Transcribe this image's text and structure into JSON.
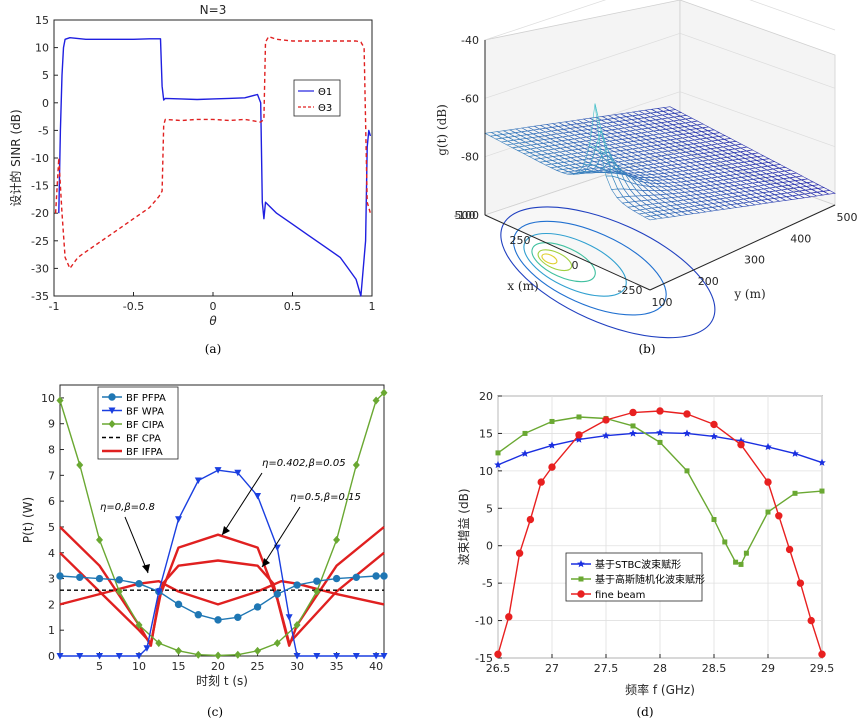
{
  "chart_data": [
    {
      "panel": "(a)",
      "type": "line",
      "title": "N=3",
      "xlabel": "θ",
      "ylabel": "设计的 SINR (dB)",
      "xlim": [
        -1,
        1
      ],
      "ylim": [
        -35,
        15
      ],
      "xticks": [
        "-1",
        "-0.5",
        "0",
        "0.5",
        "1"
      ],
      "yticks": [
        "-35",
        "-30",
        "-25",
        "-20",
        "-15",
        "-10",
        "-5",
        "0",
        "5",
        "10",
        "15"
      ],
      "legend": {
        "position": "top-right",
        "entries": [
          "Θ1",
          "Θ3"
        ]
      },
      "series": [
        {
          "name": "Θ1",
          "color": "#1f1fe0",
          "style": "solid",
          "x": [
            -0.97,
            -0.96,
            -0.95,
            -0.94,
            -0.93,
            -0.9,
            -0.8,
            -0.7,
            -0.6,
            -0.5,
            -0.4,
            -0.33,
            -0.32,
            -0.31,
            -0.3,
            -0.2,
            -0.1,
            0,
            0.1,
            0.2,
            0.28,
            0.3,
            0.31,
            0.32,
            0.33,
            0.4,
            0.5,
            0.6,
            0.7,
            0.8,
            0.85,
            0.9,
            0.93,
            0.96,
            0.97,
            0.98,
            0.99
          ],
          "y": [
            -20,
            -5,
            5,
            10,
            11.5,
            11.8,
            11.5,
            11.5,
            11.5,
            11.5,
            11.6,
            11.6,
            3,
            0.5,
            0.8,
            0.7,
            0.6,
            0.7,
            0.8,
            0.9,
            1.5,
            0,
            -18,
            -21,
            -18,
            -20,
            -22,
            -24,
            -26,
            -28,
            -30,
            -32,
            -35,
            -25,
            -8,
            -5,
            -6
          ]
        },
        {
          "name": "Θ3",
          "color": "#e02020",
          "style": "dashed",
          "x": [
            -0.99,
            -0.97,
            -0.95,
            -0.93,
            -0.9,
            -0.85,
            -0.8,
            -0.7,
            -0.6,
            -0.5,
            -0.4,
            -0.34,
            -0.32,
            -0.31,
            -0.3,
            -0.2,
            -0.1,
            0,
            0.1,
            0.2,
            0.3,
            0.32,
            0.33,
            0.35,
            0.4,
            0.5,
            0.6,
            0.7,
            0.8,
            0.9,
            0.93,
            0.95,
            0.97,
            0.99
          ],
          "y": [
            -20,
            -10,
            -20,
            -28,
            -30,
            -28,
            -27,
            -25,
            -23,
            -21,
            -19,
            -17,
            -16,
            -4,
            -3,
            -3.2,
            -3,
            -3,
            -3.2,
            -3,
            -3.5,
            -3,
            11,
            12,
            11.5,
            11.2,
            11.2,
            11.2,
            11.2,
            11.2,
            11,
            10,
            -18,
            -20
          ]
        }
      ]
    },
    {
      "panel": "(b)",
      "type": "surface3d",
      "xlabel": "x (m)",
      "ylabel": "y (m)",
      "zlabel": "g(t) (dB)",
      "zticks": [
        "-40",
        "-60",
        "-80",
        "-100"
      ],
      "xticks": [
        "500",
        "250",
        "0",
        "-250"
      ],
      "yticks": [
        "100",
        "200",
        "300",
        "400",
        "500"
      ],
      "zlim": [
        -100,
        -40
      ],
      "xlim": [
        -250,
        500
      ],
      "ylim": [
        100,
        500
      ],
      "peak": {
        "x": 0,
        "y": 100,
        "z": -45
      }
    },
    {
      "panel": "(c)",
      "type": "line",
      "xlabel": "时刻 t (s)",
      "ylabel": "P(t) (W)",
      "xlim": [
        0,
        41
      ],
      "ylim": [
        0,
        10.5
      ],
      "xticks": [
        "5",
        "10",
        "15",
        "20",
        "25",
        "30",
        "35",
        "40"
      ],
      "yticks": [
        "0",
        "1",
        "2",
        "3",
        "4",
        "5",
        "6",
        "7",
        "8",
        "9",
        "10"
      ],
      "legend": {
        "position": "top-left"
      },
      "annotations": [
        "η=0,β=0.8",
        "η=0.402,β=0.05",
        "η=0.5,β=0.15"
      ],
      "series": [
        {
          "name": "BF PFPA",
          "color": "#1f77b4",
          "marker": "circle",
          "x": [
            0,
            2.5,
            5,
            7.5,
            10,
            12.5,
            15,
            17.5,
            20,
            22.5,
            25,
            27.5,
            30,
            32.5,
            35,
            37.5,
            40,
            41
          ],
          "y": [
            3.1,
            3.05,
            3.0,
            2.95,
            2.8,
            2.5,
            2.0,
            1.6,
            1.4,
            1.5,
            1.9,
            2.4,
            2.75,
            2.9,
            3.0,
            3.05,
            3.1,
            3.1
          ]
        },
        {
          "name": "BF WPA",
          "color": "#1a3fe0",
          "marker": "triangle",
          "x": [
            0,
            2.5,
            5,
            7.5,
            10,
            11,
            12.5,
            15,
            17.5,
            20,
            22.5,
            25,
            27.5,
            29,
            30,
            32.5,
            35,
            37.5,
            40,
            41
          ],
          "y": [
            0,
            0,
            0,
            0,
            0,
            0.3,
            2.5,
            5.3,
            6.8,
            7.2,
            7.1,
            6.2,
            4.2,
            1.5,
            0,
            0,
            0,
            0,
            0,
            0
          ]
        },
        {
          "name": "BF CIPA",
          "color": "#6aa832",
          "marker": "diamond",
          "x": [
            0,
            2.5,
            5,
            7.5,
            10,
            12.5,
            15,
            17.5,
            20,
            22.5,
            25,
            27.5,
            30,
            32.5,
            35,
            37.5,
            40,
            41
          ],
          "y": [
            9.9,
            7.4,
            4.5,
            2.5,
            1.2,
            0.5,
            0.2,
            0.05,
            0.02,
            0.05,
            0.2,
            0.5,
            1.2,
            2.5,
            4.5,
            7.4,
            9.9,
            10.2
          ]
        },
        {
          "name": "BF CPA",
          "color": "#000000",
          "style": "dashed",
          "x": [
            0,
            41
          ],
          "y": [
            2.55,
            2.55
          ]
        },
        {
          "name": "BF IFPA",
          "color": "#e02020",
          "style": "solid-thick",
          "x": [
            0,
            5,
            10,
            11.5,
            12.5,
            15,
            20,
            25,
            27.5,
            29,
            30,
            35,
            41
          ],
          "y": [
            5.0,
            3.5,
            1.2,
            0.4,
            2.2,
            4.2,
            4.7,
            4.2,
            2.2,
            0.4,
            1.2,
            3.5,
            5.0
          ]
        },
        {
          "name": "",
          "color": "#e02020",
          "style": "solid-thick",
          "x": [
            0,
            5,
            10,
            11.5,
            13,
            15,
            20,
            25,
            27,
            29,
            30.5,
            35,
            41
          ],
          "y": [
            4.0,
            2.5,
            1.0,
            0.5,
            2.8,
            3.5,
            3.7,
            3.5,
            2.8,
            0.5,
            1.0,
            2.5,
            4.0
          ]
        },
        {
          "name": "",
          "color": "#e02020",
          "style": "solid-thick",
          "x": [
            0,
            5,
            10,
            12.5,
            15,
            20,
            25,
            28,
            30,
            35,
            41
          ],
          "y": [
            2.0,
            2.4,
            2.8,
            2.9,
            2.5,
            2.0,
            2.5,
            2.9,
            2.8,
            2.4,
            2.0
          ]
        }
      ]
    },
    {
      "panel": "(d)",
      "type": "line",
      "xlabel": "频率 f (GHz)",
      "ylabel": "波束增益 (dB)",
      "xlim": [
        26.5,
        29.5
      ],
      "ylim": [
        -15,
        20
      ],
      "xticks": [
        "26.5",
        "27",
        "27.5",
        "28",
        "28.5",
        "29",
        "29.5"
      ],
      "yticks": [
        "-15",
        "-10",
        "-5",
        "0",
        "5",
        "10",
        "15",
        "20"
      ],
      "legend": {
        "position": "bottom-center"
      },
      "series": [
        {
          "name": "基于STBC波束赋形",
          "color": "#1a2fe0",
          "marker": "star",
          "x": [
            26.5,
            26.75,
            27,
            27.25,
            27.5,
            27.75,
            28,
            28.25,
            28.5,
            28.75,
            29,
            29.25,
            29.5
          ],
          "y": [
            10.8,
            12.3,
            13.4,
            14.2,
            14.7,
            15.0,
            15.1,
            15.0,
            14.6,
            14.0,
            13.2,
            12.3,
            11.1
          ]
        },
        {
          "name": "基于高斯随机化波束赋形",
          "color": "#6aa832",
          "marker": "square",
          "x": [
            26.5,
            26.75,
            27,
            27.25,
            27.5,
            27.75,
            28,
            28.25,
            28.5,
            28.6,
            28.7,
            28.75,
            28.8,
            29,
            29.25,
            29.5
          ],
          "y": [
            12.4,
            15.0,
            16.6,
            17.2,
            17.0,
            16.0,
            13.8,
            10.0,
            3.5,
            0.5,
            -2.2,
            -2.5,
            -1.0,
            4.5,
            7.0,
            7.3
          ]
        },
        {
          "name": "fine beam",
          "color": "#e82020",
          "marker": "circle",
          "x": [
            26.5,
            26.6,
            26.7,
            26.8,
            26.9,
            27,
            27.25,
            27.5,
            27.75,
            28,
            28.25,
            28.5,
            28.75,
            29,
            29.1,
            29.2,
            29.3,
            29.4,
            29.5
          ],
          "y": [
            -14.5,
            -9.5,
            -1,
            3.5,
            8.5,
            10.5,
            14.8,
            16.8,
            17.8,
            18.0,
            17.6,
            16.2,
            13.5,
            8.5,
            4.0,
            -0.5,
            -5.0,
            -10.0,
            -14.5
          ]
        }
      ]
    }
  ],
  "panel_tags": [
    "(a)",
    "(b)",
    "(c)",
    "(d)"
  ]
}
